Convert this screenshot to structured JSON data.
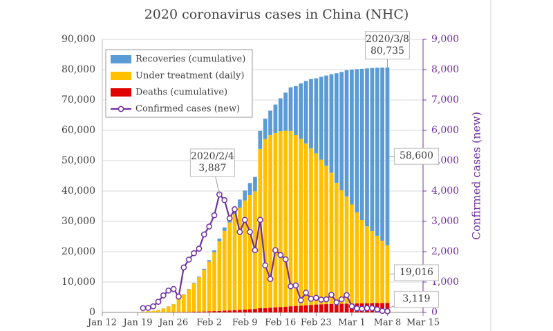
{
  "chart_data": {
    "type": "bar",
    "stacked": true,
    "title": "2020 coronavirus cases in China (NHC)",
    "y2_label": "Confirmed cases (new)",
    "x": [
      "Jan 20",
      "Jan 21",
      "Jan 22",
      "Jan 23",
      "Jan 24",
      "Jan 25",
      "Jan 26",
      "Jan 27",
      "Jan 28",
      "Jan 29",
      "Jan 30",
      "Jan 31",
      "Feb 1",
      "Feb 2",
      "Feb 3",
      "Feb 4",
      "Feb 5",
      "Feb 6",
      "Feb 7",
      "Feb 8",
      "Feb 9",
      "Feb 10",
      "Feb 11",
      "Feb 12",
      "Feb 13",
      "Feb 14",
      "Feb 15",
      "Feb 16",
      "Feb 17",
      "Feb 18",
      "Feb 19",
      "Feb 20",
      "Feb 21",
      "Feb 22",
      "Feb 23",
      "Feb 24",
      "Feb 25",
      "Feb 26",
      "Feb 27",
      "Feb 28",
      "Feb 29",
      "Mar 1",
      "Mar 2",
      "Mar 3",
      "Mar 4",
      "Mar 5",
      "Mar 6",
      "Mar 7",
      "Mar 8"
    ],
    "series": [
      {
        "name": "Recoveries (cumulative)",
        "color": "#5b9bd5",
        "values": [
          25,
          28,
          28,
          34,
          38,
          49,
          51,
          60,
          103,
          124,
          171,
          243,
          328,
          475,
          632,
          892,
          1153,
          1540,
          2050,
          2649,
          3281,
          3996,
          4740,
          5911,
          6723,
          8096,
          9419,
          10844,
          12552,
          14376,
          16155,
          18264,
          20659,
          22888,
          24734,
          27323,
          29745,
          32495,
          36117,
          39002,
          41625,
          44462,
          47204,
          49856,
          52045,
          53726,
          55404,
          57065,
          58600
        ]
      },
      {
        "name": "Under treatment (daily)",
        "color": "#ffc000",
        "values": [
          260,
          403,
          526,
          771,
          1208,
          1870,
          2613,
          4349,
          5739,
          7417,
          9308,
          11289,
          13748,
          16369,
          19381,
          22942,
          26302,
          28985,
          31774,
          33738,
          35982,
          37626,
          38800,
          52526,
          55748,
          56873,
          57416,
          57934,
          58016,
          57805,
          56303,
          54965,
          53284,
          51606,
          49824,
          47672,
          45604,
          43258,
          39919,
          37414,
          35329,
          32652,
          30004,
          27433,
          25352,
          23784,
          22177,
          20533,
          19016
        ]
      },
      {
        "name": "Deaths (cumulative)",
        "color": "#e00000",
        "values": [
          6,
          9,
          17,
          25,
          41,
          56,
          80,
          106,
          132,
          170,
          213,
          259,
          304,
          361,
          425,
          490,
          563,
          636,
          722,
          811,
          908,
          1016,
          1113,
          1367,
          1380,
          1523,
          1665,
          1770,
          1868,
          2004,
          2118,
          2236,
          2345,
          2442,
          2592,
          2663,
          2715,
          2744,
          2788,
          2835,
          2870,
          2912,
          2943,
          2981,
          3012,
          3042,
          3070,
          3097,
          3119
        ]
      },
      {
        "name": "Confirmed cases (new)",
        "color": "#7030a0",
        "type": "line",
        "axis": "y2",
        "values": [
          140,
          150,
          200,
          350,
          560,
          720,
          770,
          520,
          1480,
          1740,
          1950,
          2100,
          2570,
          2830,
          3200,
          3887,
          3700,
          3100,
          3400,
          2650,
          3050,
          2650,
          2050,
          3050,
          1550,
          1100,
          2050,
          1890,
          1750,
          860,
          890,
          400,
          650,
          450,
          480,
          420,
          430,
          580,
          330,
          430,
          570,
          200,
          130,
          120,
          140,
          140,
          100,
          50,
          40
        ]
      }
    ],
    "annotations": [
      {
        "lines": [
          "2020/2/4",
          "3,887"
        ]
      },
      {
        "lines": [
          "2020/3/8",
          "80,735"
        ]
      },
      {
        "lines": [
          "58,600"
        ]
      },
      {
        "lines": [
          "19,016"
        ]
      },
      {
        "lines": [
          "3,119"
        ]
      }
    ],
    "xlim": [
      "Jan 12",
      "Mar 15"
    ],
    "xticks": [
      "Jan 12",
      "Jan 19",
      "Jan 26",
      "Feb 2",
      "Feb 9",
      "Feb 16",
      "Feb 23",
      "Mar 1",
      "Mar 8",
      "Mar 15"
    ],
    "ylim": [
      0,
      90000
    ],
    "yticks": [
      0,
      {
        "value": 10000,
        "label": "10,000"
      },
      {
        "value": 20000,
        "label": "20,000"
      },
      {
        "value": 30000,
        "label": "30,000"
      },
      {
        "value": 40000,
        "label": "40,000"
      },
      {
        "value": 50000,
        "label": "50,000"
      },
      {
        "value": 60000,
        "label": "60,000"
      },
      {
        "value": 70000,
        "label": "70,000"
      },
      {
        "value": 80000,
        "label": "80,000"
      },
      {
        "value": 90000,
        "label": "90,000"
      }
    ],
    "y2lim": [
      0,
      9000
    ],
    "y2ticks": [
      0,
      {
        "value": 1000,
        "label": "1,000"
      },
      {
        "value": 2000,
        "label": "2,000"
      },
      {
        "value": 3000,
        "label": "3,000"
      },
      {
        "value": 4000,
        "label": "4,000"
      },
      {
        "value": 5000,
        "label": "5,000"
      },
      {
        "value": 6000,
        "label": "6,000"
      },
      {
        "value": 7000,
        "label": "7,000"
      },
      {
        "value": 8000,
        "label": "8,000"
      },
      {
        "value": 9000,
        "label": "9,000"
      }
    ],
    "grid": true,
    "legend": "upper-left"
  }
}
